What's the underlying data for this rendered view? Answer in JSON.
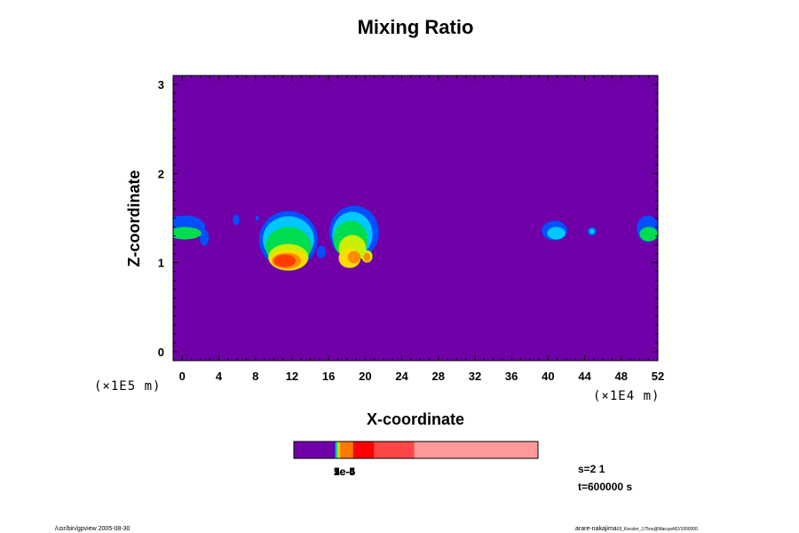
{
  "chart_data": {
    "type": "heatmap",
    "title": "Mixing Ratio",
    "xlabel": "X-coordinate",
    "ylabel": "Z-coordinate",
    "x_scale_label": "(×1E4 m)",
    "y_scale_label": "(×1E5 m)",
    "xlim": [
      -1,
      52
    ],
    "ylim": [
      -0.1,
      3.1
    ],
    "x_ticks": [
      "0",
      "4",
      "8",
      "12",
      "16",
      "20",
      "24",
      "28",
      "32",
      "36",
      "40",
      "44",
      "48",
      "52"
    ],
    "x_tick_values": [
      0,
      4,
      8,
      12,
      16,
      20,
      24,
      28,
      32,
      36,
      40,
      44,
      48,
      52
    ],
    "y_ticks": [
      "0",
      "1",
      "2",
      "3"
    ],
    "y_tick_values": [
      0,
      1,
      2,
      3
    ],
    "background_color": "#7000a8",
    "levels": [
      {
        "color": "#0050ff"
      },
      {
        "color": "#00c8ff"
      },
      {
        "color": "#00dc50"
      },
      {
        "color": "#c8f000"
      },
      {
        "color": "#ffdc00"
      },
      {
        "color": "#ff8c00"
      },
      {
        "color": "#ff3c00"
      },
      {
        "color": "#ff7878"
      }
    ],
    "features": [
      {
        "level": 0,
        "cx": 0.3,
        "cz": 1.4,
        "rx": 2.2,
        "rz": 0.13
      },
      {
        "level": 2,
        "cx": 0.3,
        "cz": 1.33,
        "rx": 1.8,
        "rz": 0.07
      },
      {
        "level": 0,
        "cx": 2.4,
        "cz": 1.28,
        "rx": 0.5,
        "rz": 0.09
      },
      {
        "level": 0,
        "cx": 5.9,
        "cz": 1.48,
        "rx": 0.35,
        "rz": 0.06
      },
      {
        "level": 0,
        "cx": 8.2,
        "cz": 1.5,
        "rx": 0.2,
        "rz": 0.03
      },
      {
        "level": 0,
        "cx": 11.6,
        "cz": 1.26,
        "rx": 3.2,
        "rz": 0.32
      },
      {
        "level": 1,
        "cx": 11.6,
        "cz": 1.26,
        "rx": 2.8,
        "rz": 0.26
      },
      {
        "level": 2,
        "cx": 11.6,
        "cz": 1.18,
        "rx": 2.5,
        "rz": 0.22
      },
      {
        "level": 3,
        "cx": 11.6,
        "cz": 1.06,
        "rx": 2.2,
        "rz": 0.15
      },
      {
        "level": 4,
        "cx": 11.6,
        "cz": 1.03,
        "rx": 2.0,
        "rz": 0.11
      },
      {
        "level": 5,
        "cx": 11.4,
        "cz": 1.02,
        "rx": 1.6,
        "rz": 0.09
      },
      {
        "level": 6,
        "cx": 11.2,
        "cz": 1.02,
        "rx": 1.2,
        "rz": 0.07
      },
      {
        "level": 0,
        "cx": 15.2,
        "cz": 1.12,
        "rx": 0.5,
        "rz": 0.07
      },
      {
        "level": 0,
        "cx": 18.8,
        "cz": 1.34,
        "rx": 2.7,
        "rz": 0.3
      },
      {
        "level": 1,
        "cx": 18.6,
        "cz": 1.32,
        "rx": 2.2,
        "rz": 0.25
      },
      {
        "level": 2,
        "cx": 18.4,
        "cz": 1.26,
        "rx": 1.9,
        "rz": 0.21
      },
      {
        "level": 3,
        "cx": 18.6,
        "cz": 1.16,
        "rx": 1.5,
        "rz": 0.15
      },
      {
        "level": 4,
        "cx": 18.3,
        "cz": 1.05,
        "rx": 1.2,
        "rz": 0.11
      },
      {
        "level": 5,
        "cx": 18.8,
        "cz": 1.06,
        "rx": 0.7,
        "rz": 0.07
      },
      {
        "level": 3,
        "cx": 20.2,
        "cz": 1.07,
        "rx": 0.6,
        "rz": 0.07
      },
      {
        "level": 5,
        "cx": 20.2,
        "cz": 1.06,
        "rx": 0.35,
        "rz": 0.05
      },
      {
        "level": 0,
        "cx": 40.7,
        "cz": 1.36,
        "rx": 1.4,
        "rz": 0.11
      },
      {
        "level": 1,
        "cx": 40.9,
        "cz": 1.33,
        "rx": 1.0,
        "rz": 0.07
      },
      {
        "level": 0,
        "cx": 44.8,
        "cz": 1.35,
        "rx": 0.5,
        "rz": 0.05
      },
      {
        "level": 1,
        "cx": 44.8,
        "cz": 1.35,
        "rx": 0.3,
        "rz": 0.03
      },
      {
        "level": 0,
        "cx": 50.9,
        "cz": 1.38,
        "rx": 1.2,
        "rz": 0.15
      },
      {
        "level": 2,
        "cx": 51.0,
        "cz": 1.32,
        "rx": 1.0,
        "rz": 0.08
      }
    ]
  },
  "colorbar": {
    "segments": [
      {
        "fraction": 0.167,
        "color": "#7000a8"
      },
      {
        "fraction": 0.004,
        "color": "#0050ff"
      },
      {
        "fraction": 0.004,
        "color": "#00c8ff"
      },
      {
        "fraction": 0.004,
        "color": "#00dc50"
      },
      {
        "fraction": 0.004,
        "color": "#c8f000"
      },
      {
        "fraction": 0.004,
        "color": "#ffdc00"
      },
      {
        "fraction": 0.006,
        "color": "#ff8c00"
      },
      {
        "fraction": 0.05,
        "color": "#ff7800"
      },
      {
        "fraction": 0.085,
        "color": "#ff0000"
      },
      {
        "fraction": 0.165,
        "color": "#ff4646"
      },
      {
        "fraction": 0.507,
        "color": "#ff9999"
      }
    ],
    "overlapping_labels": [
      "1e-6",
      "2e-5",
      "5e-5",
      "1e-4"
    ]
  },
  "info": {
    "s_label": "s=2 1",
    "t_label": "t=600000 s"
  },
  "footer": {
    "left": "/usr/bin/gpview 2005-08-30",
    "right_main": "arare-nakajima",
    "right_sub": "03_Kessler_175no@MaruyeM2/1000000"
  }
}
